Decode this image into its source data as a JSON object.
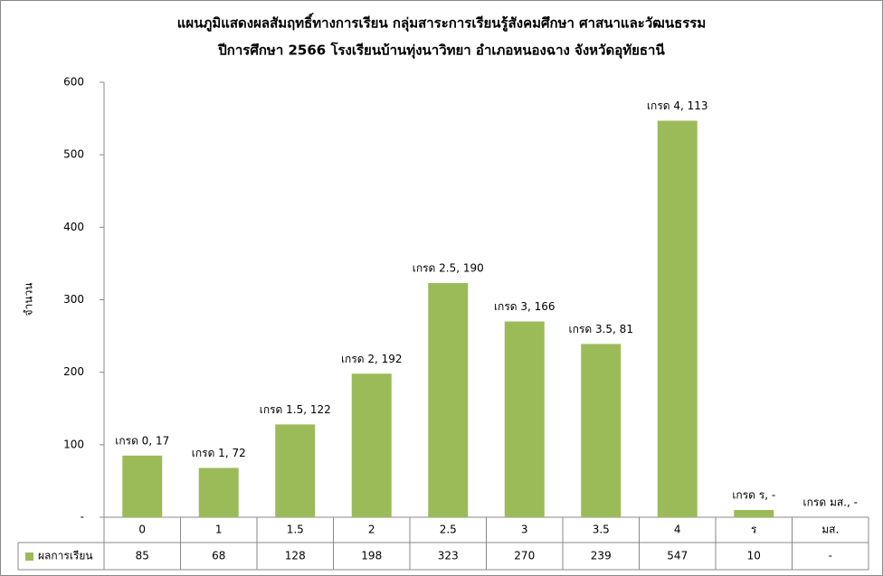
{
  "chart_data": {
    "type": "bar",
    "title": "แผนภูมิแสดงผลสัมฤทธิ์ทางการเรียน กลุ่มสาระการเรียนรู้สังคมศึกษา ศาสนาและวัฒนธรรม",
    "subtitle": "ปีการศึกษา 2566  โรงเรียนบ้านทุ่งนาวิทยา อำเภอหนองฉาง จังหวัดอุทัยธานี",
    "y_label": "จำนวน",
    "categories": [
      "0",
      "1",
      "1.5",
      "2",
      "2.5",
      "3",
      "3.5",
      "4",
      "ร",
      "มส."
    ],
    "series": [
      {
        "name": "ผลการเรียน",
        "color": "#9bbb59",
        "values": [
          85,
          68,
          128,
          198,
          323,
          270,
          239,
          547,
          10,
          null
        ],
        "value_labels": [
          "85",
          "68",
          "128",
          "198",
          "323",
          "270",
          "239",
          "547",
          "10",
          "-"
        ]
      }
    ],
    "annotations": [
      "เกรด 0,  17",
      "เกรด 1,  72",
      "เกรด 1.5,  122",
      "เกรด 2,  192",
      "เกรด 2.5,  190",
      "เกรด 3,  166",
      "เกรด 3.5,  81",
      "เกรด 4,  113",
      "เกรด ร,  -",
      "เกรด มส.,  -"
    ],
    "ylim": [
      0,
      600
    ],
    "yticks": [
      {
        "value": 0,
        "label": "-"
      },
      100,
      200,
      300,
      400,
      500,
      600
    ],
    "grid": false
  }
}
